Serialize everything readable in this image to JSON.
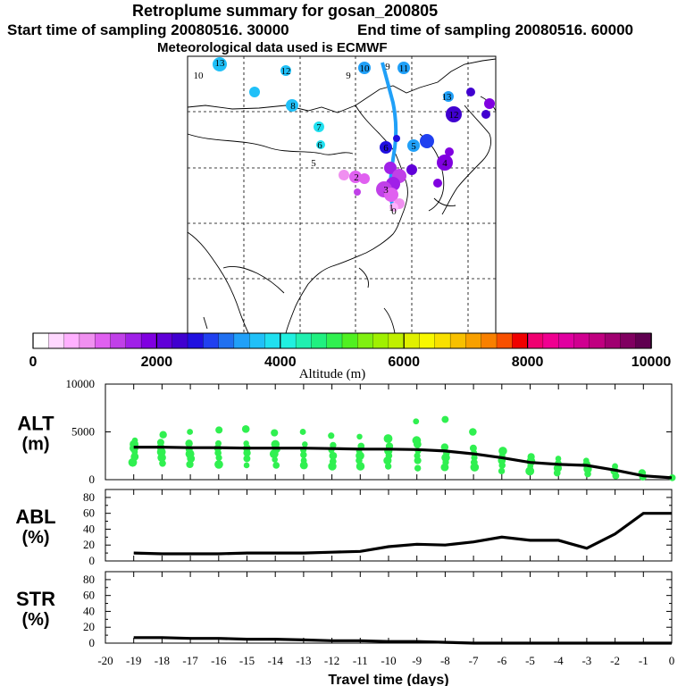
{
  "title": {
    "line1": "Retroplume summary for gosan_200805",
    "line2a": "Start time of sampling 20080516. 30000",
    "line2b": "End time of sampling 20080516. 60000",
    "line3": "Meteorological data used is ECMWF"
  },
  "colorbar": {
    "label": "Altitude (m)",
    "tick_labels": [
      "0",
      "2000",
      "4000",
      "6000",
      "8000",
      "10000"
    ],
    "range": [
      0,
      10000
    ],
    "colors": [
      "#ffffff",
      "#ffd8ff",
      "#ffb0ff",
      "#f090f0",
      "#e060f0",
      "#c040e8",
      "#a020e8",
      "#8000e0",
      "#6000d8",
      "#4000d0",
      "#2010e0",
      "#2040f0",
      "#2070f0",
      "#20a0f8",
      "#20c0f8",
      "#20e0f0",
      "#20f0e0",
      "#20f0b0",
      "#20f080",
      "#30f050",
      "#50f020",
      "#80f010",
      "#a0f000",
      "#c0f000",
      "#e0f000",
      "#f8f800",
      "#f8e000",
      "#f8c000",
      "#f8a000",
      "#f88000",
      "#f85000",
      "#f00000",
      "#f00070",
      "#f00090",
      "#e000a0",
      "#d00090",
      "#c00080",
      "#a00070",
      "#800060",
      "#600050"
    ]
  },
  "map": {
    "numbers": [
      {
        "label": "10",
        "c": "#20c0f8"
      },
      {
        "label": "13",
        "c": "#20c0f8"
      },
      {
        "label": "12",
        "c": "#20c0f8"
      },
      {
        "label": "9",
        "c": "#20c0f8"
      },
      {
        "label": "10",
        "c": "#20a0f8"
      },
      {
        "label": "9",
        "c": "#20a0f8"
      },
      {
        "label": "11",
        "c": "#20a0f8"
      },
      {
        "label": "8",
        "c": "#20c0f8"
      },
      {
        "label": "7",
        "c": "#20e0f0"
      },
      {
        "label": "6",
        "c": "#20e0f0"
      },
      {
        "label": "5",
        "c": "#20e0f0"
      },
      {
        "label": "13",
        "c": "#20a0f8"
      },
      {
        "label": "12",
        "c": "#4000d0"
      },
      {
        "label": "6",
        "c": "#2010e0"
      },
      {
        "label": "5",
        "c": "#20a0f8"
      },
      {
        "label": "4",
        "c": "#8000e0"
      },
      {
        "label": "3",
        "c": "#a020e8"
      },
      {
        "label": "2",
        "c": "#e060f0"
      },
      {
        "label": "1",
        "c": "#f090f0"
      },
      {
        "label": "0",
        "c": "#ffb0ff"
      }
    ]
  },
  "chart_data": [
    {
      "type": "scatter",
      "name": "ALT",
      "ylabel_line1": "ALT",
      "ylabel_line2": "(m)",
      "ylim": [
        0,
        10000
      ],
      "yticks": [
        "10000",
        "5000",
        "0"
      ],
      "xlim": [
        -20,
        0
      ],
      "points_color": "#30f050",
      "line_color": "#000000",
      "mean_line": {
        "x": [
          -19,
          -18,
          -17,
          -16,
          -15,
          -14,
          -13,
          -12,
          -11,
          -10,
          -9,
          -8,
          -7,
          -6,
          -5,
          -4,
          -3,
          -2,
          -1,
          0
        ],
        "y": [
          3400,
          3400,
          3350,
          3350,
          3300,
          3300,
          3300,
          3250,
          3200,
          3200,
          3150,
          3000,
          2700,
          2300,
          1800,
          1600,
          1500,
          1000,
          400,
          200
        ]
      },
      "scatter": [
        {
          "x": -19,
          "ys": [
            1800,
            2400,
            2900,
            3300,
            3700,
            4100
          ]
        },
        {
          "x": -18,
          "ys": [
            1700,
            2300,
            2900,
            3400,
            3900,
            4700
          ]
        },
        {
          "x": -17,
          "ys": [
            1600,
            2200,
            2700,
            3200,
            3800,
            5000
          ]
        },
        {
          "x": -16,
          "ys": [
            1600,
            2300,
            2800,
            3300,
            3800,
            5200
          ]
        },
        {
          "x": -15,
          "ys": [
            1500,
            2200,
            2800,
            3300,
            3800,
            5300
          ]
        },
        {
          "x": -14,
          "ys": [
            1500,
            2100,
            2700,
            3200,
            3700,
            4900
          ]
        },
        {
          "x": -13,
          "ys": [
            1500,
            2000,
            2600,
            3100,
            3700,
            5000
          ]
        },
        {
          "x": -12,
          "ys": [
            1400,
            1900,
            2500,
            3100,
            3600,
            4600
          ]
        },
        {
          "x": -11,
          "ys": [
            1400,
            2000,
            2500,
            3000,
            3500,
            4500
          ]
        },
        {
          "x": -10,
          "ys": [
            1400,
            2000,
            2500,
            3000,
            3500,
            4300
          ]
        },
        {
          "x": -9,
          "ys": [
            1200,
            2000,
            2500,
            3000,
            3700,
            4100,
            6100
          ]
        },
        {
          "x": -8,
          "ys": [
            1300,
            1800,
            2300,
            2800,
            3400,
            6300
          ]
        },
        {
          "x": -7,
          "ys": [
            1300,
            1800,
            2300,
            2800,
            3300,
            5000
          ]
        },
        {
          "x": -6,
          "ys": [
            900,
            1500,
            2000,
            2500,
            3000
          ]
        },
        {
          "x": -5,
          "ys": [
            900,
            1400,
            1900,
            2400
          ]
        },
        {
          "x": -4,
          "ys": [
            700,
            1200,
            1700,
            2200
          ]
        },
        {
          "x": -3,
          "ys": [
            600,
            1100,
            1600,
            2000
          ]
        },
        {
          "x": -2,
          "ys": [
            400,
            900,
            1400
          ]
        },
        {
          "x": -1,
          "ys": [
            300,
            700
          ]
        },
        {
          "x": 0,
          "ys": [
            200
          ]
        }
      ]
    },
    {
      "type": "line",
      "name": "ABL",
      "ylabel_line1": "ABL",
      "ylabel_line2": "(%)",
      "ylim": [
        0,
        90
      ],
      "yticks": [
        "80",
        "60",
        "40",
        "20",
        "0"
      ],
      "xlim": [
        -20,
        0
      ],
      "x": [
        -19,
        -18,
        -17,
        -16,
        -15,
        -14,
        -13,
        -12,
        -11,
        -10,
        -9,
        -8,
        -7,
        -6,
        -5,
        -4,
        -3,
        -2,
        -1,
        0
      ],
      "y": [
        10,
        9,
        9,
        9,
        10,
        10,
        10,
        11,
        12,
        18,
        21,
        20,
        24,
        30,
        26,
        26,
        16,
        34,
        60,
        60
      ]
    },
    {
      "type": "line",
      "name": "STR",
      "ylabel_line1": "STR",
      "ylabel_line2": "(%)",
      "ylim": [
        0,
        90
      ],
      "yticks": [
        "80",
        "60",
        "40",
        "20",
        "0"
      ],
      "xlim": [
        -20,
        0
      ],
      "xlabel": "Travel time (days)",
      "xticks": [
        "-20",
        "-19",
        "-18",
        "-17",
        "-16",
        "-15",
        "-14",
        "-13",
        "-12",
        "-11",
        "-10",
        "-9",
        "-8",
        "-7",
        "-6",
        "-5",
        "-4",
        "-3",
        "-2",
        "-1",
        "0"
      ],
      "x": [
        -19,
        -18,
        -17,
        -16,
        -15,
        -14,
        -13,
        -12,
        -11,
        -10,
        -9,
        -8,
        -7,
        -6,
        -5,
        -4,
        -3,
        -2,
        -1,
        0
      ],
      "y": [
        7,
        7,
        6,
        6,
        5,
        5,
        4,
        3,
        3,
        2,
        2,
        1,
        0,
        0,
        0,
        0,
        0,
        0,
        0,
        0
      ]
    }
  ]
}
